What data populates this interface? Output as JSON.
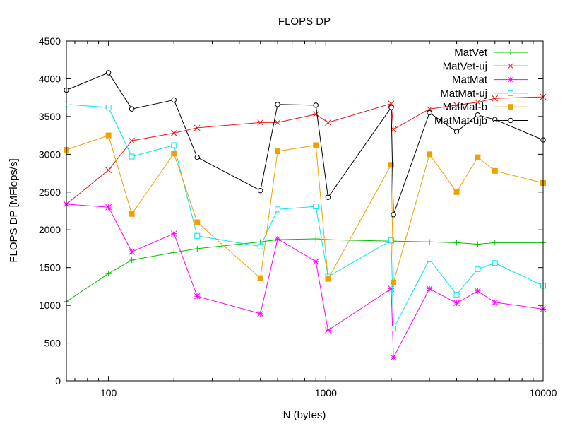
{
  "chart_data": {
    "type": "line",
    "title": "FLOPS DP",
    "xlabel": "N (bytes)",
    "ylabel": "FLOPS DP [MFlops/s]",
    "x_scale": "log",
    "xlim": [
      64,
      10000
    ],
    "ylim": [
      0,
      4500
    ],
    "x_ticks": [
      100,
      1000,
      10000
    ],
    "x_tick_labels": [
      "100",
      "1000",
      "10000"
    ],
    "y_ticks": [
      0,
      500,
      1000,
      1500,
      2000,
      2500,
      3000,
      3500,
      4000,
      4500
    ],
    "y_tick_labels": [
      "0",
      "500",
      "1000",
      "1500",
      "2000",
      "2500",
      "3000",
      "3500",
      "4000",
      "4500"
    ],
    "grid": false,
    "legend_position": "top-right",
    "x": [
      64,
      100,
      128,
      200,
      256,
      500,
      600,
      900,
      1024,
      2000,
      2048,
      3000,
      4000,
      5000,
      6000,
      10000
    ],
    "series": [
      {
        "name": "MatVet",
        "color": "#00c000",
        "marker": "plus",
        "values": [
          1050,
          1420,
          1600,
          1700,
          1750,
          1840,
          1870,
          1880,
          1870,
          1850,
          1850,
          1840,
          1830,
          1810,
          1830,
          1830
        ]
      },
      {
        "name": "MatVet-uj",
        "color": "#e41a1c",
        "marker": "cross",
        "values": [
          2340,
          2790,
          3180,
          3280,
          3350,
          3420,
          3420,
          3530,
          3420,
          3670,
          3330,
          3600,
          3650,
          3690,
          3740,
          3760
        ]
      },
      {
        "name": "MatMat",
        "color": "#ff00ff",
        "marker": "star",
        "values": [
          2340,
          2300,
          1710,
          1950,
          1120,
          890,
          1880,
          1580,
          670,
          1220,
          310,
          1220,
          1030,
          1190,
          1040,
          950
        ]
      },
      {
        "name": "MatMat-uj",
        "color": "#00e5ee",
        "marker": "open-square",
        "values": [
          3660,
          3620,
          2970,
          3120,
          1920,
          1780,
          2270,
          2310,
          1380,
          1860,
          690,
          1610,
          1140,
          1480,
          1560,
          1260
        ]
      },
      {
        "name": "MatMat-b",
        "color": "#f0a000",
        "marker": "filled-square",
        "values": [
          3060,
          3250,
          2210,
          3010,
          2100,
          1360,
          3040,
          3120,
          1350,
          2860,
          1300,
          3000,
          2500,
          2960,
          2780,
          2620
        ]
      },
      {
        "name": "MatMat-ujb",
        "color": "#000000",
        "marker": "open-circle",
        "values": [
          3850,
          4080,
          3600,
          3720,
          2960,
          2520,
          3660,
          3650,
          2430,
          3620,
          2200,
          3550,
          3300,
          3520,
          3460,
          3190
        ]
      }
    ]
  }
}
